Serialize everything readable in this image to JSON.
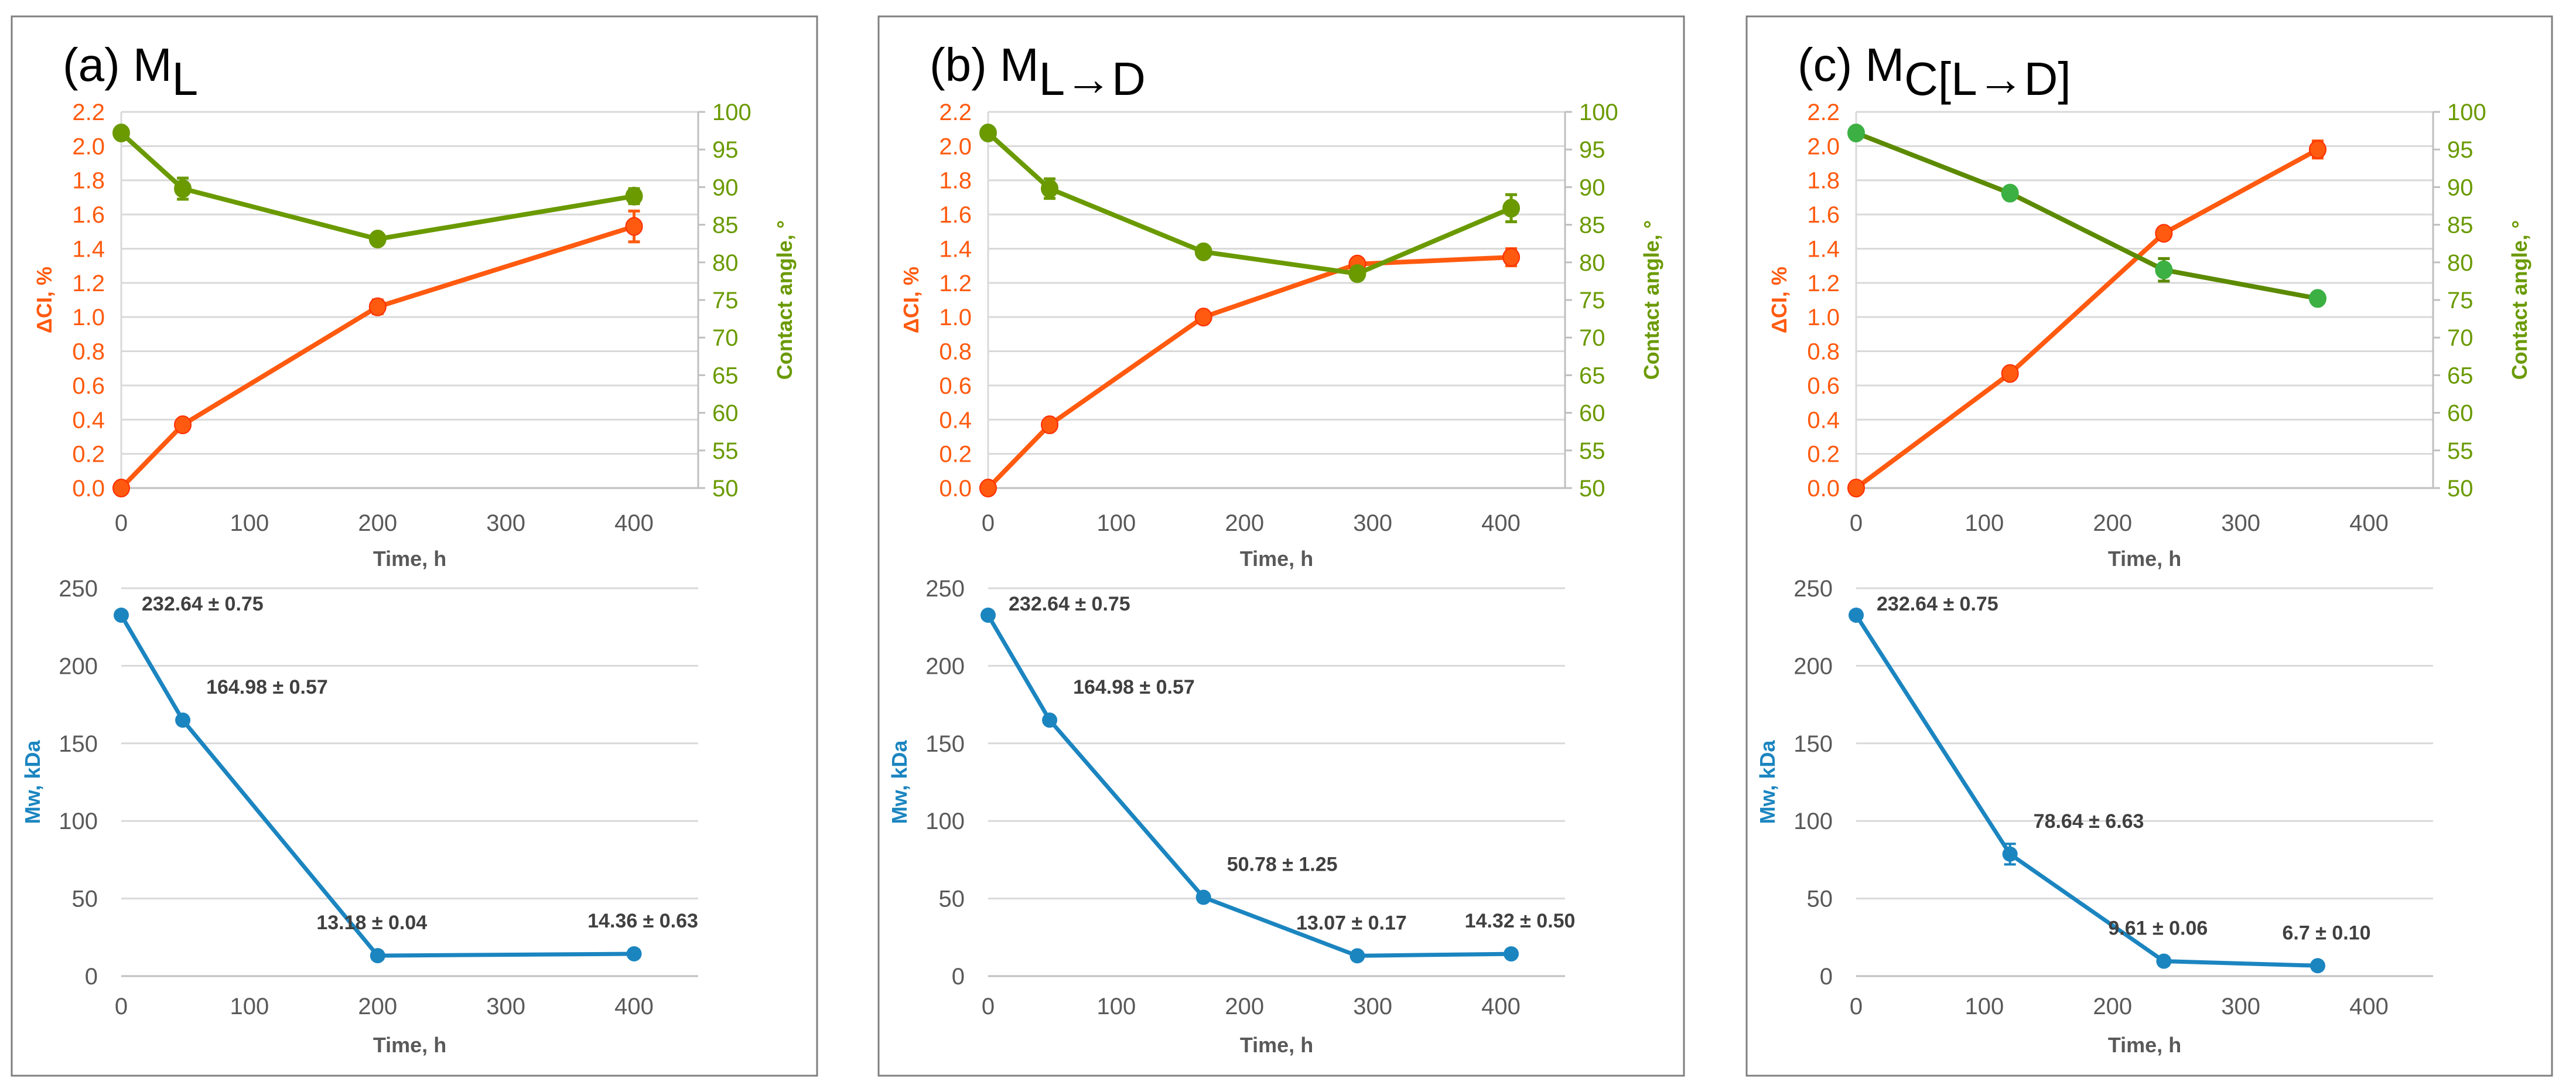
{
  "chart_data": [
    {
      "type": "line",
      "panel_label": "(a) M",
      "panel_subscript": "L",
      "top": {
        "xlabel": "Time, h",
        "xlim": [
          0,
          450
        ],
        "xticks": [
          0,
          100,
          200,
          300,
          400
        ],
        "y_left": {
          "label": "ΔCI, %",
          "lim": [
            0,
            2.2
          ],
          "ticks": [
            "0.0",
            "0.2",
            "0.4",
            "0.6",
            "0.8",
            "1.0",
            "1.2",
            "1.4",
            "1.6",
            "1.8",
            "2.0",
            "2.2"
          ]
        },
        "y_right": {
          "label": "Contact angle, °",
          "lim": [
            50,
            100
          ],
          "ticks": [
            "50",
            "55",
            "60",
            "65",
            "70",
            "75",
            "80",
            "85",
            "90",
            "95",
            "100"
          ]
        },
        "series": [
          {
            "name": "ΔCI",
            "axis": "left",
            "color": "#FF5A0F",
            "marker_color": "#FF5A0F",
            "x": [
              0,
              48,
              200,
              400
            ],
            "y": [
              0.0,
              0.37,
              1.06,
              1.53
            ],
            "err": [
              0.0,
              0.02,
              0.04,
              0.09
            ]
          },
          {
            "name": "Contact angle",
            "axis": "right",
            "color": "#6A9A00",
            "marker_color": "#6A9A00",
            "x": [
              0,
              48,
              200,
              400
            ],
            "y": [
              97.2,
              89.8,
              83.1,
              88.8
            ],
            "err": [
              0.3,
              1.4,
              0.4,
              1.0
            ]
          }
        ]
      },
      "bottom": {
        "xlabel": "Time, h",
        "ylabel": "Mw, kDa",
        "xlim": [
          0,
          450
        ],
        "xticks": [
          0,
          100,
          200,
          300,
          400
        ],
        "ylim": [
          0,
          250
        ],
        "yticks": [
          0,
          50,
          100,
          150,
          200,
          250
        ],
        "color": "#1B85C0",
        "x": [
          0,
          48,
          200,
          400
        ],
        "y": [
          232.64,
          164.98,
          13.18,
          14.36
        ],
        "err": [
          0.75,
          0.57,
          0.04,
          0.63
        ],
        "labels": [
          "232.64 ± 0.75",
          "164.98 ± 0.57",
          "13.18 ± 0.04",
          "14.36 ± 0.63"
        ]
      }
    },
    {
      "type": "line",
      "panel_label": "(b) M",
      "panel_subscript": "L→D",
      "top": {
        "xlabel": "Time, h",
        "xlim": [
          0,
          450
        ],
        "xticks": [
          0,
          100,
          200,
          300,
          400
        ],
        "y_left": {
          "label": "ΔCI, %",
          "lim": [
            0,
            2.2
          ],
          "ticks": [
            "0.0",
            "0.2",
            "0.4",
            "0.6",
            "0.8",
            "1.0",
            "1.2",
            "1.4",
            "1.6",
            "1.8",
            "2.0",
            "2.2"
          ]
        },
        "y_right": {
          "label": "Contact angle, °",
          "lim": [
            50,
            100
          ],
          "ticks": [
            "50",
            "55",
            "60",
            "65",
            "70",
            "75",
            "80",
            "85",
            "90",
            "95",
            "100"
          ]
        },
        "series": [
          {
            "name": "ΔCI",
            "axis": "left",
            "color": "#FF5A0F",
            "marker_color": "#FF5A0F",
            "x": [
              0,
              48,
              168,
              288,
              408
            ],
            "y": [
              0.0,
              0.37,
              1.0,
              1.31,
              1.35
            ],
            "err": [
              0.0,
              0.02,
              0.02,
              0.03,
              0.05
            ]
          },
          {
            "name": "Contact angle",
            "axis": "right",
            "color": "#6A9A00",
            "marker_color": "#6A9A00",
            "x": [
              0,
              48,
              168,
              288,
              408
            ],
            "y": [
              97.2,
              89.8,
              81.4,
              78.5,
              87.2
            ],
            "err": [
              0.3,
              1.3,
              0.5,
              0.8,
              1.8
            ]
          }
        ]
      },
      "bottom": {
        "xlabel": "Time, h",
        "ylabel": "Mw, kDa",
        "xlim": [
          0,
          450
        ],
        "xticks": [
          0,
          100,
          200,
          300,
          400
        ],
        "ylim": [
          0,
          250
        ],
        "yticks": [
          0,
          50,
          100,
          150,
          200,
          250
        ],
        "color": "#1B85C0",
        "x": [
          0,
          48,
          168,
          288,
          408
        ],
        "y": [
          232.64,
          164.98,
          50.78,
          13.07,
          14.32
        ],
        "err": [
          0.75,
          0.57,
          1.25,
          0.17,
          0.5
        ],
        "labels": [
          "232.64 ± 0.75",
          "164.98 ± 0.57",
          "50.78 ± 1.25",
          "13.07 ± 0.17",
          "14.32 ± 0.50"
        ]
      }
    },
    {
      "type": "line",
      "panel_label": "(c) M",
      "panel_subscript": "C[L→D]",
      "top": {
        "xlabel": "Time, h",
        "xlim": [
          0,
          450
        ],
        "xticks": [
          0,
          100,
          200,
          300,
          400
        ],
        "y_left": {
          "label": "ΔCI, %",
          "lim": [
            0,
            2.2
          ],
          "ticks": [
            "0.0",
            "0.2",
            "0.4",
            "0.6",
            "0.8",
            "1.0",
            "1.2",
            "1.4",
            "1.6",
            "1.8",
            "2.0",
            "2.2"
          ]
        },
        "y_right": {
          "label": "Contact angle, °",
          "lim": [
            50,
            100
          ],
          "ticks": [
            "50",
            "55",
            "60",
            "65",
            "70",
            "75",
            "80",
            "85",
            "90",
            "95",
            "100"
          ]
        },
        "series": [
          {
            "name": "ΔCI",
            "axis": "left",
            "color": "#FF5A0F",
            "marker_color": "#FF5A0F",
            "x": [
              0,
              120,
              240,
              360
            ],
            "y": [
              0.0,
              0.67,
              1.49,
              1.98
            ],
            "err": [
              0.0,
              0.02,
              0.03,
              0.05
            ]
          },
          {
            "name": "Contact angle",
            "axis": "right",
            "color": "#5C8A00",
            "marker_color": "#3CB043",
            "x": [
              0,
              120,
              240,
              360
            ],
            "y": [
              97.2,
              89.2,
              79.0,
              75.2
            ],
            "err": [
              0.3,
              0.4,
              1.5,
              0.4
            ]
          }
        ]
      },
      "bottom": {
        "xlabel": "Time, h",
        "ylabel": "Mw, kDa",
        "xlim": [
          0,
          450
        ],
        "xticks": [
          0,
          100,
          200,
          300,
          400
        ],
        "ylim": [
          0,
          250
        ],
        "yticks": [
          0,
          50,
          100,
          150,
          200,
          250
        ],
        "color": "#1B85C0",
        "x": [
          0,
          120,
          240,
          360
        ],
        "y": [
          232.64,
          78.64,
          9.61,
          6.7
        ],
        "err": [
          0.75,
          6.63,
          0.06,
          0.1
        ],
        "labels": [
          "232.64 ± 0.75",
          "78.64 ± 6.63",
          "9.61 ± 0.06",
          "6.7  ± 0.10"
        ]
      }
    }
  ]
}
